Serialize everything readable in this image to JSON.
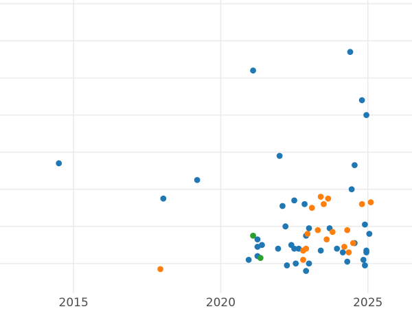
{
  "chart_data": {
    "type": "scatter",
    "title": "",
    "xlabel": "",
    "ylabel": "",
    "xlim": [
      2012.5,
      2026.5
    ],
    "ylim": [
      0,
      7.9
    ],
    "x_ticks": [
      2015,
      2020,
      2025
    ],
    "x_tick_labels": [
      "2015",
      "2020",
      "2025"
    ],
    "y_gridlines": [
      0.8,
      1.8,
      2.8,
      3.8,
      4.8,
      5.8,
      6.8,
      7.8
    ],
    "y_tick_labels_visible": false,
    "grid": true,
    "legend": "none",
    "series": [
      {
        "color": "#1f77b4",
        "points": [
          [
            2014.5,
            3.5
          ],
          [
            2018.05,
            2.55
          ],
          [
            2019.2,
            3.05
          ],
          [
            2021.1,
            6.0
          ],
          [
            2022.0,
            3.7
          ],
          [
            2024.4,
            6.5
          ],
          [
            2024.8,
            5.2
          ],
          [
            2024.95,
            4.8
          ],
          [
            2024.55,
            3.45
          ],
          [
            2024.45,
            2.8
          ],
          [
            2020.95,
            0.9
          ],
          [
            2021.25,
            1.45
          ],
          [
            2021.25,
            1.0
          ],
          [
            2021.25,
            1.25
          ],
          [
            2021.4,
            1.3
          ],
          [
            2021.95,
            1.2
          ],
          [
            2022.1,
            2.35
          ],
          [
            2022.2,
            1.8
          ],
          [
            2022.25,
            0.75
          ],
          [
            2022.4,
            1.3
          ],
          [
            2022.5,
            1.2
          ],
          [
            2022.55,
            0.8
          ],
          [
            2022.5,
            2.5
          ],
          [
            2022.65,
            1.2
          ],
          [
            2022.85,
            2.4
          ],
          [
            2022.9,
            1.55
          ],
          [
            2022.9,
            0.6
          ],
          [
            2023.0,
            1.75
          ],
          [
            2023.0,
            0.8
          ],
          [
            2023.4,
            1.15
          ],
          [
            2023.7,
            1.75
          ],
          [
            2023.95,
            1.2
          ],
          [
            2024.15,
            1.1
          ],
          [
            2024.3,
            0.85
          ],
          [
            2024.55,
            1.35
          ],
          [
            2024.85,
            0.9
          ],
          [
            2024.9,
            0.75
          ],
          [
            2024.9,
            1.85
          ],
          [
            2024.95,
            1.1
          ],
          [
            2024.95,
            1.15
          ],
          [
            2025.05,
            1.6
          ]
        ]
      },
      {
        "color": "#ff7f0e",
        "points": [
          [
            2017.95,
            0.65
          ],
          [
            2022.8,
            0.9
          ],
          [
            2022.8,
            1.15
          ],
          [
            2022.9,
            1.2
          ],
          [
            2022.95,
            1.6
          ],
          [
            2023.1,
            2.3
          ],
          [
            2023.3,
            1.7
          ],
          [
            2023.4,
            2.6
          ],
          [
            2023.5,
            2.4
          ],
          [
            2023.6,
            1.45
          ],
          [
            2023.65,
            2.55
          ],
          [
            2023.8,
            1.65
          ],
          [
            2024.2,
            1.25
          ],
          [
            2024.3,
            1.7
          ],
          [
            2024.35,
            1.1
          ],
          [
            2024.5,
            1.35
          ],
          [
            2024.8,
            2.4
          ],
          [
            2025.1,
            2.45
          ]
        ]
      },
      {
        "color": "#2ca02c",
        "points": [
          [
            2021.1,
            1.55
          ],
          [
            2021.35,
            0.95
          ]
        ]
      }
    ]
  }
}
